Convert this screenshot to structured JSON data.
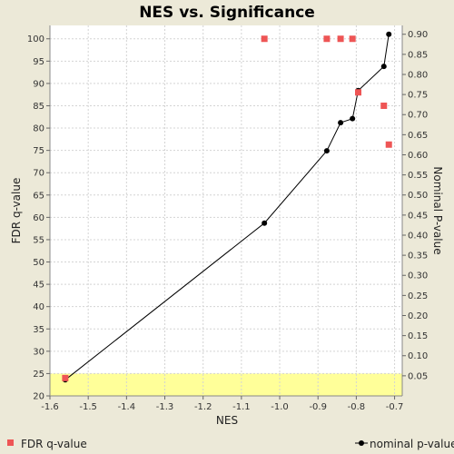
{
  "chart_data": {
    "type": "scatter",
    "title": "NES vs. Significance",
    "xlabel": "NES",
    "ylabel_left": "FDR q-value",
    "ylabel_right": "Nominal P-value",
    "xlim": [
      -1.6,
      -0.68
    ],
    "ylim_left": [
      20,
      103
    ],
    "ylim_right": [
      0.0,
      0.922
    ],
    "x_ticks": [
      "-1.6",
      "-1.5",
      "-1.4",
      "-1.3",
      "-1.2",
      "-1.1",
      "-1.0",
      "-0.9",
      "-0.8",
      "-0.7"
    ],
    "y_ticks_left": [
      "20",
      "25",
      "30",
      "35",
      "40",
      "45",
      "50",
      "55",
      "60",
      "65",
      "70",
      "75",
      "80",
      "85",
      "90",
      "95",
      "100"
    ],
    "y_ticks_right": [
      "0.05",
      "0.10",
      "0.15",
      "0.20",
      "0.25",
      "0.30",
      "0.35",
      "0.40",
      "0.45",
      "0.50",
      "0.55",
      "0.60",
      "0.65",
      "0.70",
      "0.75",
      "0.80",
      "0.85",
      "0.90"
    ],
    "grid": true,
    "highlight_band": {
      "y_from": 20,
      "y_to": 25,
      "color": "#ffff99"
    },
    "series": [
      {
        "name": "FDR q-value",
        "axis": "left",
        "marker": "square",
        "color": "#ee5555",
        "points": [
          {
            "x": -1.56,
            "y": 24
          },
          {
            "x": -1.04,
            "y": 100
          },
          {
            "x": -0.877,
            "y": 100
          },
          {
            "x": -0.841,
            "y": 100
          },
          {
            "x": -0.81,
            "y": 100
          },
          {
            "x": -0.795,
            "y": 88
          },
          {
            "x": -0.728,
            "y": 85
          },
          {
            "x": -0.715,
            "y": 76.3
          }
        ]
      },
      {
        "name": "nominal p-value",
        "axis": "right",
        "marker": "circle-line",
        "color": "#000000",
        "points": [
          {
            "x": -1.56,
            "y": 0.04
          },
          {
            "x": -1.04,
            "y": 0.43
          },
          {
            "x": -0.877,
            "y": 0.61
          },
          {
            "x": -0.841,
            "y": 0.68
          },
          {
            "x": -0.81,
            "y": 0.69
          },
          {
            "x": -0.795,
            "y": 0.76
          },
          {
            "x": -0.728,
            "y": 0.82
          },
          {
            "x": -0.715,
            "y": 0.9
          }
        ]
      }
    ]
  }
}
